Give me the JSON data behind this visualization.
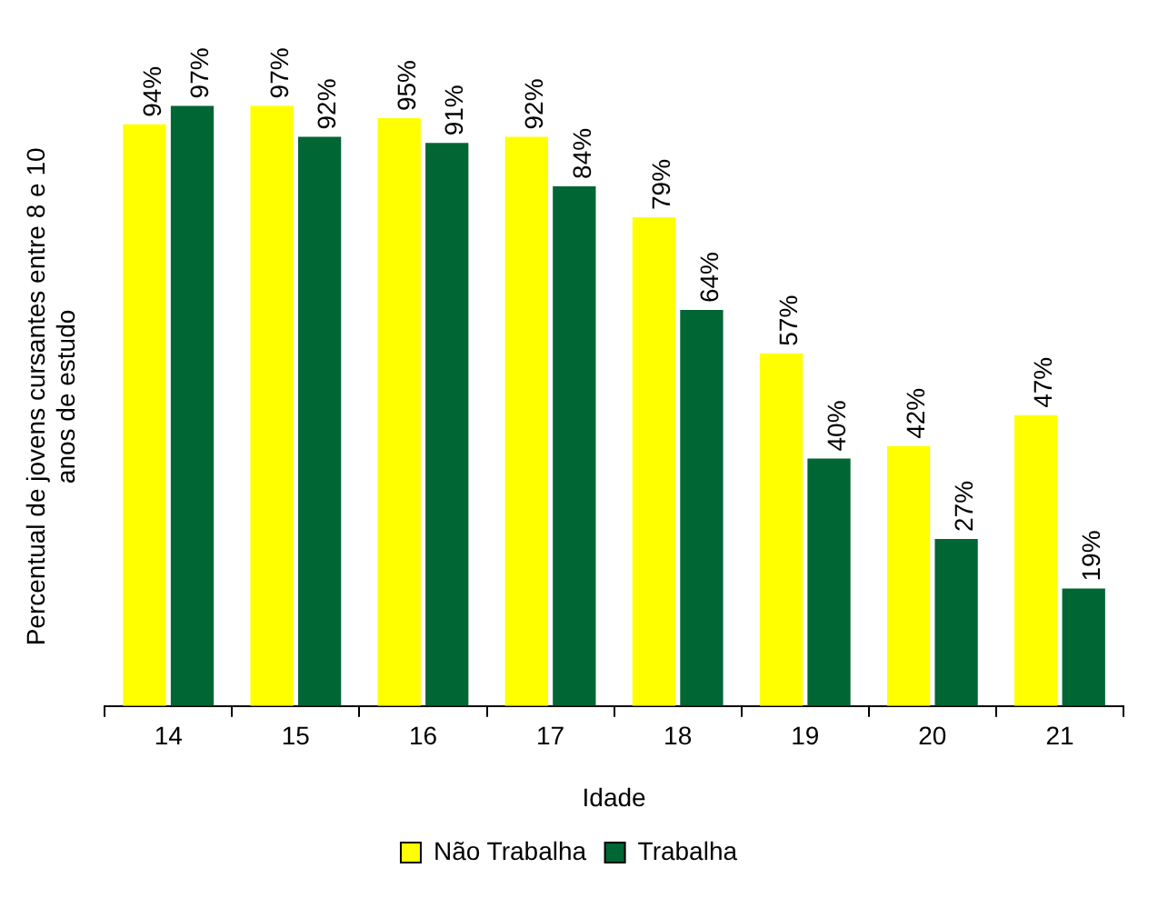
{
  "chart_data": {
    "type": "bar",
    "xlabel": "Idade",
    "ylabel": "Percentual de jovens cursantes entre 8 e 10 anos de estudo",
    "categories": [
      "14",
      "15",
      "16",
      "17",
      "18",
      "19",
      "20",
      "21"
    ],
    "series": [
      {
        "name": "Não Trabalha",
        "color": "#ffff00",
        "values": [
          94,
          97,
          95,
          92,
          79,
          57,
          42,
          47
        ],
        "value_labels": [
          "94%",
          "97%",
          "95%",
          "92%",
          "79%",
          "57%",
          "42%",
          "47%"
        ]
      },
      {
        "name": "Trabalha",
        "color": "#006633",
        "values": [
          97,
          92,
          91,
          84,
          64,
          40,
          27,
          19
        ],
        "value_labels": [
          "97%",
          "92%",
          "91%",
          "84%",
          "64%",
          "40%",
          "27%",
          "19%"
        ]
      }
    ],
    "legend": "bottom",
    "grid": false
  }
}
